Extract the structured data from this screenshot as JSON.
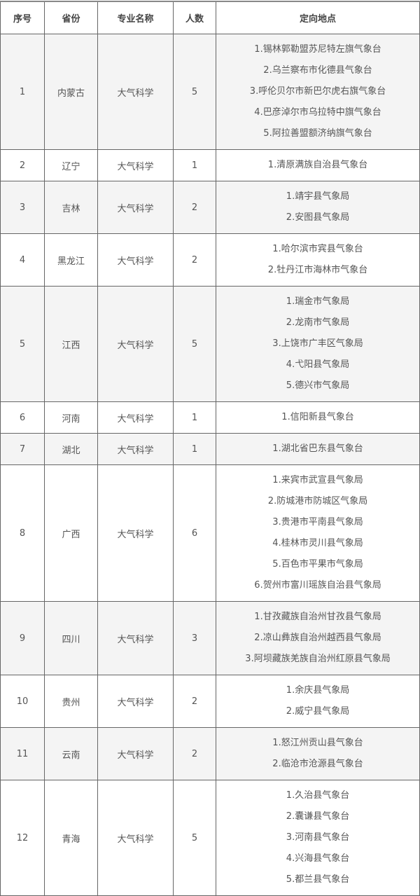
{
  "headers": [
    "序号",
    "省份",
    "专业名称",
    "人数",
    "定向地点"
  ],
  "rows": [
    {
      "no": "1",
      "province": "内蒙古",
      "major": "大气科学",
      "count": "5",
      "locations": [
        "1.锡林郭勒盟苏尼特左旗气象台",
        "2.乌兰察布市化德县气象台",
        "3.呼伦贝尔市新巴尔虎右旗气象台",
        "4.巴彦淖尔市乌拉特中旗气象台",
        "5.阿拉善盟额济纳旗气象台"
      ]
    },
    {
      "no": "2",
      "province": "辽宁",
      "major": "大气科学",
      "count": "1",
      "locations": [
        "1.清原满族自治县气象台"
      ]
    },
    {
      "no": "3",
      "province": "吉林",
      "major": "大气科学",
      "count": "2",
      "locations": [
        "1.靖宇县气象局",
        "2.安图县气象局"
      ]
    },
    {
      "no": "4",
      "province": "黑龙江",
      "major": "大气科学",
      "count": "2",
      "locations": [
        "1.哈尔滨市宾县气象台",
        "2.牡丹江市海林市气象台"
      ]
    },
    {
      "no": "5",
      "province": "江西",
      "major": "大气科学",
      "count": "5",
      "locations": [
        "1.瑞金市气象局",
        "2.龙南市气象局",
        "3.上饶市广丰区气象局",
        "4.弋阳县气象局",
        "5.德兴市气象局"
      ]
    },
    {
      "no": "6",
      "province": "河南",
      "major": "大气科学",
      "count": "1",
      "locations": [
        "1.信阳新县气象台"
      ]
    },
    {
      "no": "7",
      "province": "湖北",
      "major": "大气科学",
      "count": "1",
      "locations": [
        "1.湖北省巴东县气象台"
      ]
    },
    {
      "no": "8",
      "province": "广西",
      "major": "大气科学",
      "count": "6",
      "locations": [
        "1.来宾市武宣县气象局",
        "2.防城港市防城区气象局",
        "3.贵港市平南县气象局",
        "4.桂林市灵川县气象局",
        "5.百色市平果市气象局",
        "6.贺州市富川瑶族自治县气象局"
      ]
    },
    {
      "no": "9",
      "province": "四川",
      "major": "大气科学",
      "count": "3",
      "locations": [
        "1.甘孜藏族自治州甘孜县气象局",
        "2.凉山彝族自治州越西县气象局",
        "3.阿坝藏族羌族自治州红原县气象局"
      ]
    },
    {
      "no": "10",
      "province": "贵州",
      "major": "大气科学",
      "count": "2",
      "locations": [
        "1.余庆县气象局",
        "2.威宁县气象局"
      ]
    },
    {
      "no": "11",
      "province": "云南",
      "major": "大气科学",
      "count": "2",
      "locations": [
        "1.怒江州贡山县气象台",
        "2.临沧市沧源县气象台"
      ]
    },
    {
      "no": "12",
      "province": "青海",
      "major": "大气科学",
      "count": "5",
      "locations": [
        "1.久治县气象台",
        "2.囊谦县气象台",
        "3.河南县气象台",
        "4.兴海县气象台",
        "5.都兰县气象台"
      ]
    }
  ]
}
